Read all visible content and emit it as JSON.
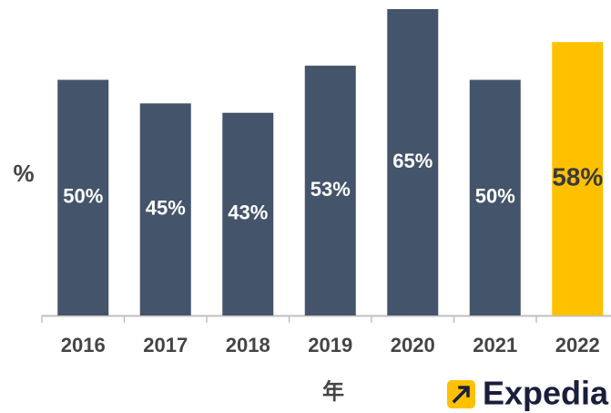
{
  "chart_data": {
    "type": "bar",
    "y_label": "%",
    "x_label": "年",
    "categories": [
      "2016",
      "2017",
      "2018",
      "2019",
      "2020",
      "2021",
      "2022"
    ],
    "values": [
      50,
      45,
      43,
      53,
      65,
      50,
      58
    ],
    "value_labels": [
      "50%",
      "45%",
      "43%",
      "53%",
      "65%",
      "50%",
      "58%"
    ],
    "colors": [
      "#44546a",
      "#44546a",
      "#44546a",
      "#44546a",
      "#44546a",
      "#44546a",
      "#ffc000"
    ],
    "label_colors": [
      "#ffffff",
      "#ffffff",
      "#ffffff",
      "#ffffff",
      "#ffffff",
      "#ffffff",
      "#3a3a3a"
    ],
    "logo_text": "Expedia"
  }
}
